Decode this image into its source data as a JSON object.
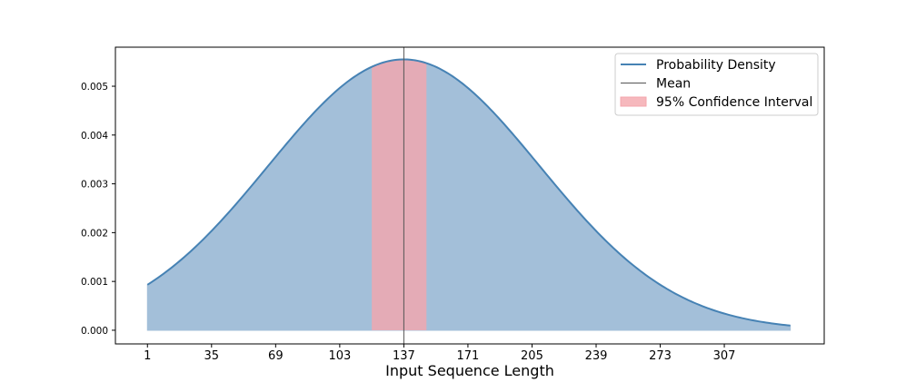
{
  "chart_data": {
    "type": "area",
    "title": "",
    "xlabel": "Input Sequence Length",
    "ylabel": "",
    "xlim": [
      -16,
      360
    ],
    "ylim": [
      -0.00028,
      0.0058
    ],
    "x_ticks": [
      1,
      35,
      69,
      103,
      137,
      171,
      205,
      239,
      273,
      307
    ],
    "y_ticks": [
      0.0,
      0.001,
      0.002,
      0.003,
      0.004,
      0.005
    ],
    "y_tick_labels": [
      "0.000",
      "0.001",
      "0.002",
      "0.003",
      "0.004",
      "0.005"
    ],
    "grid": false,
    "legend_position": "top-right",
    "distribution": {
      "x_min": 1,
      "x_max": 342,
      "mean": 137,
      "std": 72,
      "peak_density": 0.00555
    },
    "confidence_interval": [
      120,
      149
    ],
    "series": [
      {
        "name": "Probability Density",
        "kind": "line",
        "color": "#4682b4"
      },
      {
        "name": "Mean",
        "kind": "vline",
        "x": 137,
        "color": "#555555"
      },
      {
        "name": "95% Confidence Interval",
        "kind": "band",
        "color": "#f4a6ad"
      }
    ],
    "fill_color": "#a3bfd9"
  }
}
